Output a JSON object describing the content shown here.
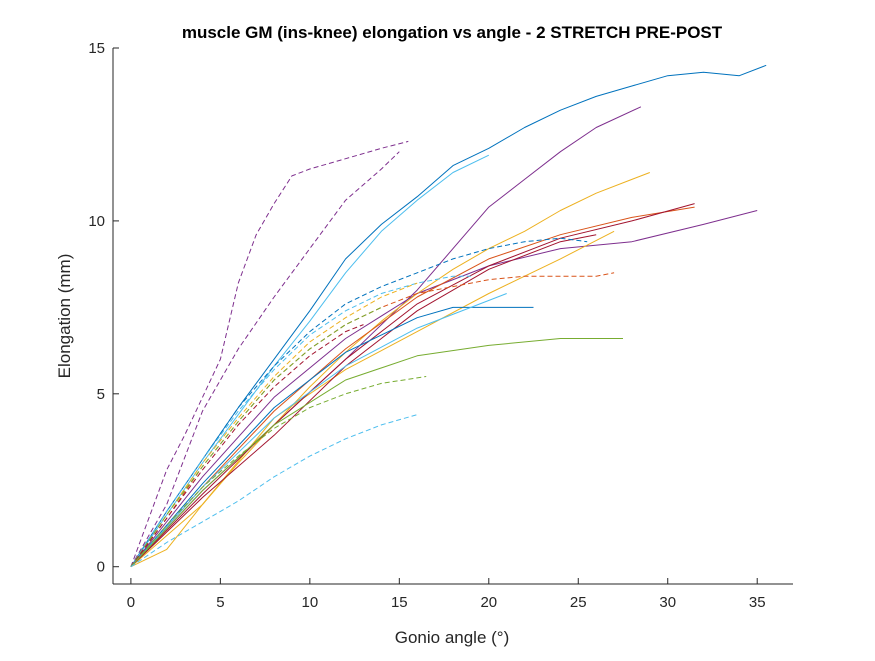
{
  "chart_data": {
    "type": "line",
    "title": "muscle GM (ins-knee) elongation vs angle - 2 STRETCH PRE-POST",
    "xlabel": "Gonio angle (°)",
    "ylabel": "Elongation (mm)",
    "xlim": [
      -1,
      37
    ],
    "ylim": [
      -0.5,
      15
    ],
    "xticks": [
      0,
      5,
      10,
      15,
      20,
      25,
      30,
      35
    ],
    "yticks": [
      0,
      5,
      10,
      15
    ],
    "xtick_labels": [
      "0",
      "5",
      "10",
      "15",
      "20",
      "25",
      "30",
      "35"
    ],
    "ytick_labels": [
      "0",
      "5",
      "10",
      "15"
    ],
    "grid": false,
    "legend": "none",
    "series": [
      {
        "color": "#0072BD",
        "style": "solid",
        "x": [
          0,
          2,
          4,
          6,
          8,
          10,
          12,
          14,
          16,
          18,
          20,
          22,
          24,
          26,
          28,
          30,
          32,
          34,
          35.5
        ],
        "y": [
          0,
          1.6,
          3.1,
          4.6,
          6.0,
          7.4,
          8.9,
          9.9,
          10.7,
          11.6,
          12.1,
          12.7,
          13.2,
          13.6,
          13.9,
          14.2,
          14.3,
          14.2,
          14.5
        ]
      },
      {
        "color": "#4DBEEE",
        "style": "solid",
        "x": [
          0,
          2,
          4,
          6,
          8,
          10,
          12,
          14,
          16,
          18,
          20
        ],
        "y": [
          0,
          1.5,
          3.0,
          4.4,
          5.8,
          7.1,
          8.5,
          9.7,
          10.6,
          11.4,
          11.9
        ]
      },
      {
        "color": "#7E2F8E",
        "style": "solid",
        "x": [
          0,
          4,
          8,
          12,
          16,
          18,
          20,
          22,
          24,
          26,
          28.5
        ],
        "y": [
          0,
          2.2,
          4.1,
          6.0,
          8.0,
          9.2,
          10.4,
          11.2,
          12.0,
          12.7,
          13.3
        ]
      },
      {
        "color": "#7E2F8E",
        "style": "solid",
        "x": [
          0,
          4,
          8,
          12,
          16,
          20,
          24,
          28,
          32,
          35
        ],
        "y": [
          0,
          2.6,
          4.9,
          6.6,
          7.9,
          8.7,
          9.2,
          9.4,
          9.9,
          10.3
        ]
      },
      {
        "color": "#EDB120",
        "style": "solid",
        "x": [
          0,
          2,
          4,
          6,
          8,
          10,
          12,
          14,
          16,
          18,
          20,
          22,
          24,
          26,
          28,
          29
        ],
        "y": [
          0,
          0.5,
          1.8,
          3.0,
          4.1,
          5.2,
          6.2,
          7.1,
          7.9,
          8.6,
          9.2,
          9.7,
          10.3,
          10.8,
          11.2,
          11.4
        ]
      },
      {
        "color": "#EDB120",
        "style": "solid",
        "x": [
          0,
          4,
          8,
          12,
          16,
          20,
          24,
          27
        ],
        "y": [
          0,
          1.8,
          4.3,
          5.7,
          6.8,
          7.9,
          8.9,
          9.7
        ]
      },
      {
        "color": "#D95319",
        "style": "solid",
        "x": [
          0,
          4,
          8,
          12,
          16,
          20,
          24,
          28,
          31.5
        ],
        "y": [
          0,
          2.3,
          4.5,
          6.3,
          7.8,
          8.9,
          9.6,
          10.1,
          10.4
        ]
      },
      {
        "color": "#A2142F",
        "style": "solid",
        "x": [
          0,
          4,
          8,
          12,
          16,
          20,
          24,
          28,
          31.5
        ],
        "y": [
          0,
          2.1,
          4.1,
          6.0,
          7.6,
          8.7,
          9.5,
          10.0,
          10.5
        ]
      },
      {
        "color": "#A2142F",
        "style": "solid",
        "x": [
          0,
          4,
          8,
          12,
          16,
          20,
          24,
          26
        ],
        "y": [
          0,
          2.0,
          3.8,
          5.8,
          7.4,
          8.6,
          9.4,
          9.6
        ]
      },
      {
        "color": "#0072BD",
        "style": "solid",
        "x": [
          0,
          4,
          8,
          12,
          16,
          18,
          20,
          22.5
        ],
        "y": [
          0,
          2.4,
          4.6,
          6.2,
          7.2,
          7.5,
          7.5,
          7.5
        ]
      },
      {
        "color": "#4DBEEE",
        "style": "solid",
        "x": [
          0,
          4,
          8,
          12,
          16,
          19,
          21
        ],
        "y": [
          0,
          2.3,
          4.3,
          5.8,
          6.9,
          7.5,
          7.9
        ]
      },
      {
        "color": "#77AC30",
        "style": "solid",
        "x": [
          0,
          4,
          8,
          12,
          16,
          20,
          24,
          27.5
        ],
        "y": [
          0,
          2.2,
          4.1,
          5.4,
          6.1,
          6.4,
          6.6,
          6.6
        ]
      },
      {
        "color": "#7E2F8E",
        "style": "dashed",
        "x": [
          0,
          1,
          2,
          3,
          4,
          5,
          6,
          7,
          8,
          9,
          10,
          12,
          14,
          15.5
        ],
        "y": [
          0,
          1.4,
          2.8,
          3.8,
          4.9,
          6.0,
          8.2,
          9.6,
          10.5,
          11.3,
          11.5,
          11.8,
          12.1,
          12.3
        ]
      },
      {
        "color": "#7E2F8E",
        "style": "dashed",
        "x": [
          0,
          2,
          4,
          6,
          8,
          10,
          12,
          14,
          15
        ],
        "y": [
          0,
          1.8,
          4.5,
          6.3,
          7.8,
          9.2,
          10.6,
          11.5,
          12.0
        ]
      },
      {
        "color": "#0072BD",
        "style": "dashed",
        "x": [
          0,
          2,
          4,
          6,
          8,
          10,
          12,
          14,
          16,
          18,
          20,
          22,
          24,
          25.5
        ],
        "y": [
          0,
          1.6,
          3.1,
          4.6,
          5.8,
          6.8,
          7.6,
          8.1,
          8.5,
          8.9,
          9.2,
          9.4,
          9.5,
          9.4
        ]
      },
      {
        "color": "#D95319",
        "style": "dashed",
        "x": [
          0,
          2,
          4,
          6,
          8,
          10,
          12,
          14,
          16,
          18,
          20,
          22,
          24,
          26,
          27
        ],
        "y": [
          0,
          1.4,
          2.9,
          4.2,
          5.4,
          6.3,
          7.0,
          7.5,
          7.9,
          8.1,
          8.3,
          8.4,
          8.4,
          8.4,
          8.5
        ]
      },
      {
        "color": "#4DBEEE",
        "style": "dashed",
        "x": [
          0,
          2,
          4,
          6,
          8,
          10,
          12,
          14,
          16,
          18,
          19
        ],
        "y": [
          0,
          1.6,
          3.1,
          4.5,
          5.7,
          6.7,
          7.4,
          7.9,
          8.2,
          8.4,
          8.4
        ]
      },
      {
        "color": "#EDB120",
        "style": "dashed",
        "x": [
          0,
          2,
          4,
          6,
          8,
          10,
          12,
          14,
          16
        ],
        "y": [
          0,
          1.5,
          3.0,
          4.3,
          5.5,
          6.5,
          7.2,
          7.8,
          8.2
        ]
      },
      {
        "color": "#77AC30",
        "style": "dashed",
        "x": [
          0,
          2,
          4,
          6,
          8,
          10,
          12,
          14
        ],
        "y": [
          0,
          1.5,
          2.9,
          4.2,
          5.4,
          6.3,
          7.0,
          7.5
        ]
      },
      {
        "color": "#A2142F",
        "style": "dashed",
        "x": [
          0,
          2,
          4,
          6,
          8,
          10,
          12,
          13
        ],
        "y": [
          0,
          1.4,
          2.8,
          4.1,
          5.2,
          6.1,
          6.8,
          7.0
        ]
      },
      {
        "color": "#77AC30",
        "style": "dashed",
        "x": [
          0,
          2,
          4,
          6,
          8,
          10,
          12,
          14,
          16.5
        ],
        "y": [
          0,
          1.2,
          2.3,
          3.2,
          4.0,
          4.6,
          5.0,
          5.3,
          5.5
        ]
      },
      {
        "color": "#4DBEEE",
        "style": "dashed",
        "x": [
          0,
          2,
          4,
          6,
          8,
          10,
          12,
          14,
          16
        ],
        "y": [
          0,
          0.7,
          1.3,
          1.9,
          2.6,
          3.2,
          3.7,
          4.1,
          4.4
        ]
      }
    ]
  }
}
